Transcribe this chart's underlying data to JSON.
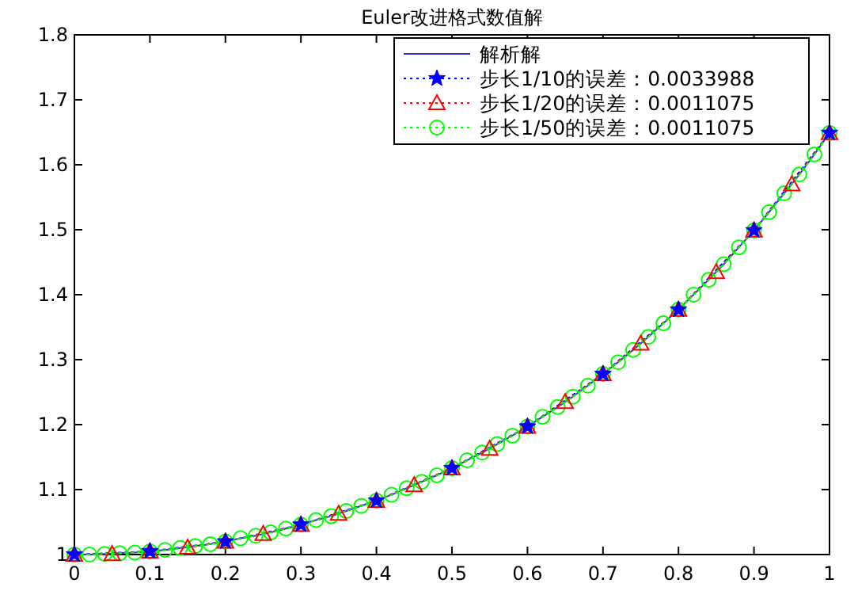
{
  "chart_data": {
    "type": "line",
    "title": "Euler改进格式数值解",
    "xlim": [
      0,
      1
    ],
    "ylim": [
      1,
      1.8
    ],
    "xticks": [
      0,
      0.1,
      0.2,
      0.3,
      0.4,
      0.5,
      0.6,
      0.7,
      0.8,
      0.9,
      1
    ],
    "yticks": [
      1,
      1.1,
      1.2,
      1.3,
      1.4,
      1.5,
      1.6,
      1.7,
      1.8
    ],
    "grid": false,
    "legend": "top right",
    "series": [
      {
        "name": "解析解",
        "color": "#3333cc",
        "marker": "none",
        "line_style": "solid",
        "x": [
          0,
          0.02,
          0.04,
          0.06,
          0.08,
          0.1,
          0.12,
          0.14,
          0.16,
          0.18,
          0.2,
          0.22,
          0.24,
          0.26,
          0.28,
          0.3,
          0.32,
          0.34,
          0.36,
          0.38,
          0.4,
          0.42,
          0.44,
          0.46,
          0.48,
          0.5,
          0.52,
          0.54,
          0.56,
          0.58,
          0.6,
          0.62,
          0.64,
          0.66,
          0.68,
          0.7,
          0.72,
          0.74,
          0.76,
          0.78,
          0.8,
          0.82,
          0.84,
          0.86,
          0.88,
          0.9,
          0.92,
          0.94,
          0.96,
          0.98,
          1
        ],
        "values": [
          1.0,
          1.0,
          1.001,
          1.002,
          1.003,
          1.005,
          1.007,
          1.01,
          1.013,
          1.016,
          1.02,
          1.025,
          1.029,
          1.034,
          1.04,
          1.046,
          1.053,
          1.059,
          1.067,
          1.075,
          1.083,
          1.092,
          1.102,
          1.112,
          1.122,
          1.133,
          1.145,
          1.157,
          1.17,
          1.183,
          1.197,
          1.212,
          1.227,
          1.243,
          1.26,
          1.278,
          1.296,
          1.315,
          1.335,
          1.356,
          1.377,
          1.4,
          1.423,
          1.447,
          1.473,
          1.499,
          1.527,
          1.556,
          1.585,
          1.616,
          1.649
        ]
      },
      {
        "name": "步长1/10的误差：0.0033988",
        "color": "#0000ff",
        "marker": "star",
        "line_style": "dotted",
        "x": [
          0,
          0.1,
          0.2,
          0.3,
          0.4,
          0.5,
          0.6,
          0.7,
          0.8,
          0.9,
          1
        ],
        "values": [
          1.0,
          1.005,
          1.02,
          1.046,
          1.083,
          1.133,
          1.197,
          1.278,
          1.377,
          1.499,
          1.649
        ]
      },
      {
        "name": "步长1/20的误差：0.0011075",
        "color": "#ff0000",
        "marker": "triangle",
        "line_style": "dotted",
        "x": [
          0,
          0.05,
          0.1,
          0.15,
          0.2,
          0.25,
          0.3,
          0.35,
          0.4,
          0.45,
          0.5,
          0.55,
          0.6,
          0.65,
          0.7,
          0.75,
          0.8,
          0.85,
          0.9,
          0.95,
          1
        ],
        "values": [
          1.0,
          1.001,
          1.005,
          1.011,
          1.02,
          1.032,
          1.046,
          1.063,
          1.083,
          1.107,
          1.133,
          1.163,
          1.197,
          1.235,
          1.278,
          1.325,
          1.377,
          1.435,
          1.499,
          1.57,
          1.649
        ]
      },
      {
        "name": "步长1/50的误差：0.0011075",
        "color": "#00ff00",
        "marker": "circle",
        "line_style": "dotted",
        "x": [
          0,
          0.02,
          0.04,
          0.06,
          0.08,
          0.1,
          0.12,
          0.14,
          0.16,
          0.18,
          0.2,
          0.22,
          0.24,
          0.26,
          0.28,
          0.3,
          0.32,
          0.34,
          0.36,
          0.38,
          0.4,
          0.42,
          0.44,
          0.46,
          0.48,
          0.5,
          0.52,
          0.54,
          0.56,
          0.58,
          0.6,
          0.62,
          0.64,
          0.66,
          0.68,
          0.7,
          0.72,
          0.74,
          0.76,
          0.78,
          0.8,
          0.82,
          0.84,
          0.86,
          0.88,
          0.9,
          0.92,
          0.94,
          0.96,
          0.98,
          1
        ],
        "values": [
          1.0,
          1.0,
          1.001,
          1.002,
          1.003,
          1.005,
          1.007,
          1.01,
          1.013,
          1.016,
          1.02,
          1.025,
          1.029,
          1.034,
          1.04,
          1.046,
          1.053,
          1.059,
          1.067,
          1.075,
          1.083,
          1.092,
          1.102,
          1.112,
          1.122,
          1.133,
          1.145,
          1.157,
          1.17,
          1.183,
          1.197,
          1.212,
          1.227,
          1.243,
          1.26,
          1.278,
          1.296,
          1.315,
          1.335,
          1.356,
          1.377,
          1.4,
          1.423,
          1.447,
          1.473,
          1.499,
          1.527,
          1.556,
          1.585,
          1.616,
          1.649
        ]
      }
    ]
  }
}
